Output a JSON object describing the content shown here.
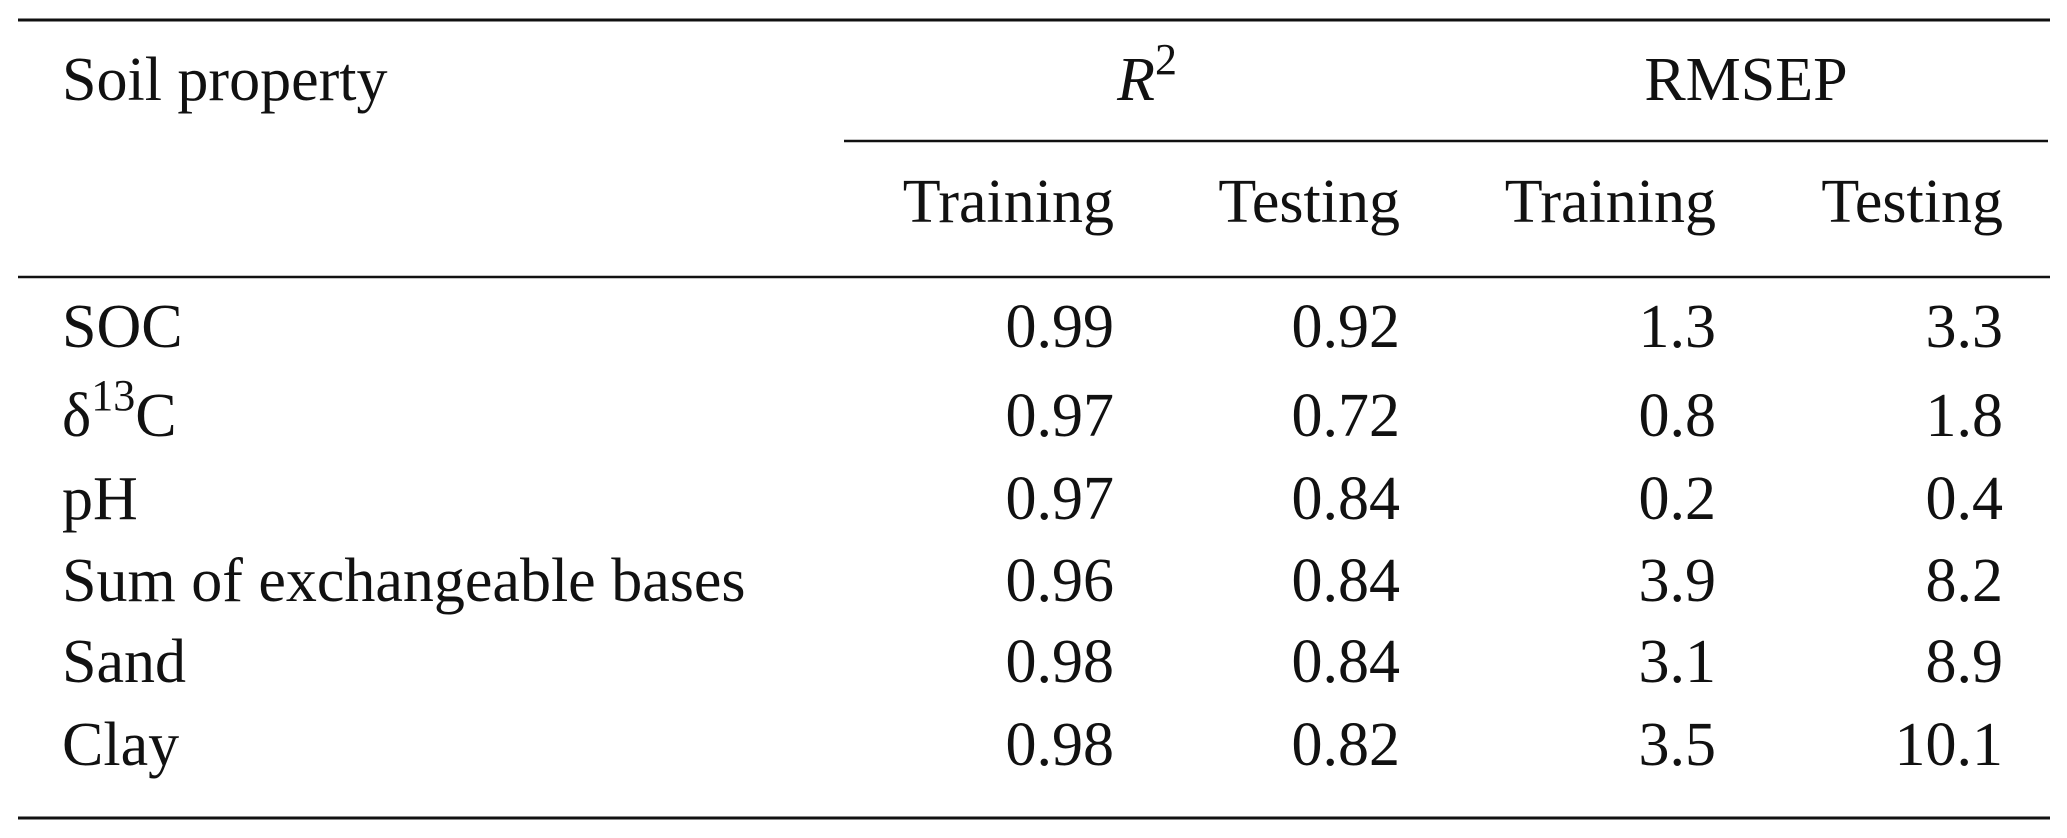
{
  "table": {
    "header": {
      "property": "Soil property",
      "groups": [
        {
          "label": "R",
          "sup": "2",
          "italic": true
        },
        {
          "label": "RMSEP"
        }
      ],
      "subheaders": [
        "Training",
        "Testing",
        "Training",
        "Testing"
      ]
    },
    "rows": [
      {
        "property": {
          "label": "SOC"
        },
        "values": [
          "0.99",
          "0.92",
          "1.3",
          "3.3"
        ]
      },
      {
        "property": {
          "label": "δ",
          "sup": "13",
          "after": "C"
        },
        "values": [
          "0.97",
          "0.72",
          "0.8",
          "1.8"
        ]
      },
      {
        "property": {
          "label": "pH"
        },
        "values": [
          "0.97",
          "0.84",
          "0.2",
          "0.4"
        ]
      },
      {
        "property": {
          "label": "Sum of exchangeable bases"
        },
        "values": [
          "0.96",
          "0.84",
          "3.9",
          "8.2"
        ]
      },
      {
        "property": {
          "label": "Sand"
        },
        "values": [
          "0.98",
          "0.84",
          "3.1",
          "8.9"
        ]
      },
      {
        "property": {
          "label": "Clay"
        },
        "values": [
          "0.98",
          "0.82",
          "3.5",
          "10.1"
        ]
      }
    ]
  }
}
